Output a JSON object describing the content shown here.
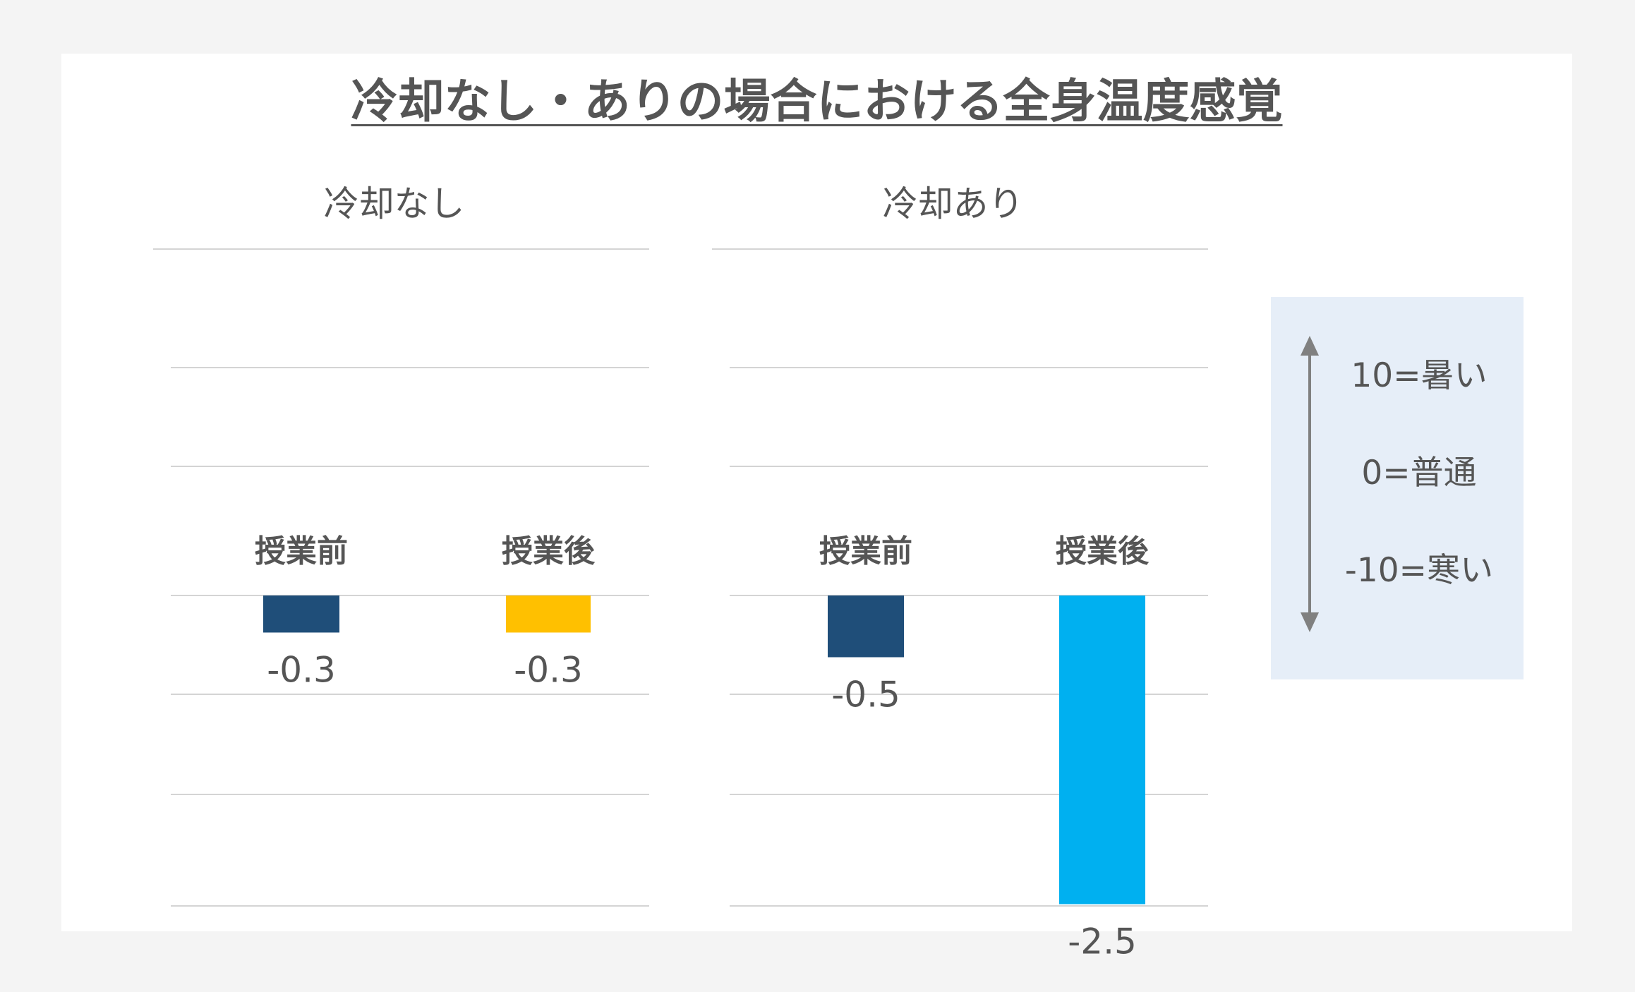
{
  "title": "冷却なし・ありの場合における全身温度感覚",
  "legend_scale": {
    "high": "10=暑い",
    "mid": "0=普通",
    "low": "-10=寒い"
  },
  "chart_data": [
    {
      "type": "bar",
      "title": "冷却なし",
      "categories": [
        "授業前",
        "授業後"
      ],
      "values": [
        -0.3,
        -0.3
      ],
      "value_labels": [
        "-0.3",
        "-0.3"
      ],
      "colors": [
        "#1f4e79",
        "#ffc000"
      ],
      "ylim": [
        -3,
        3
      ],
      "grid": true
    },
    {
      "type": "bar",
      "title": "冷却あり",
      "categories": [
        "授業前",
        "授業後"
      ],
      "values": [
        -0.5,
        -2.5
      ],
      "value_labels": [
        "-0.5",
        "-2.5"
      ],
      "colors": [
        "#1f4e79",
        "#00b0f0"
      ],
      "ylim": [
        -3,
        3
      ],
      "grid": true
    }
  ]
}
